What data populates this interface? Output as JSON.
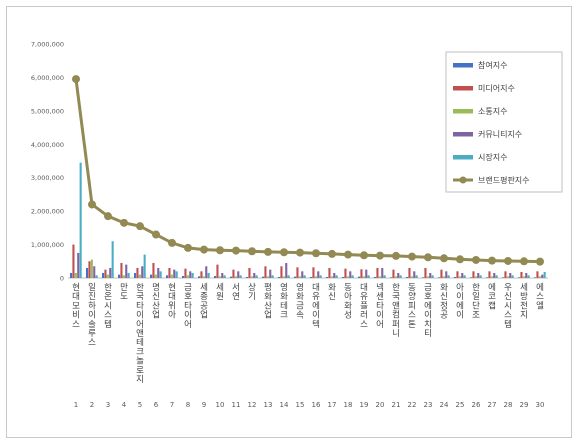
{
  "chart_data": {
    "type": "bar",
    "x": [
      1,
      2,
      3,
      4,
      5,
      6,
      7,
      8,
      9,
      10,
      11,
      12,
      13,
      14,
      15,
      16,
      17,
      18,
      19,
      20,
      21,
      22,
      23,
      24,
      25,
      26,
      27,
      28,
      29,
      30
    ],
    "categories": [
      "현대모비스",
      "일진하이솔루스",
      "한온시스템",
      "만도",
      "한국타이어앤테크놀로지",
      "명신산업",
      "현대위아",
      "금호타이어",
      "세종공업",
      "세원",
      "서연",
      "상기",
      "평화산업",
      "영화테크",
      "영화금속",
      "대유에이텍",
      "화신",
      "동아화성",
      "대유플러스",
      "넥센타이어",
      "한국앤컴퍼니",
      "동양피스톤",
      "금호에이치티",
      "화신정공",
      "아이에이",
      "한일단조",
      "에코캡",
      "우신시스템",
      "세방전지",
      "에스엘"
    ],
    "ylim": [
      0,
      7000000
    ],
    "yticks": [
      "0",
      "1,000,000",
      "2,000,000",
      "3,000,000",
      "4,000,000",
      "5,000,000",
      "6,000,000",
      "7,000,000"
    ],
    "series": [
      {
        "name": "참여지수",
        "color": "#4472c4",
        "values": [
          150000,
          300000,
          150000,
          100000,
          150000,
          100000,
          80000,
          60000,
          50000,
          60000,
          40000,
          30000,
          40000,
          30000,
          40000,
          30000,
          30000,
          30000,
          40000,
          30000,
          20000,
          30000,
          20000,
          20000,
          30000,
          20000,
          20000,
          20000,
          20000,
          20000
        ]
      },
      {
        "name": "미디어지수",
        "color": "#c0504d",
        "values": [
          1000000,
          500000,
          250000,
          450000,
          300000,
          450000,
          300000,
          280000,
          200000,
          400000,
          250000,
          300000,
          350000,
          350000,
          320000,
          320000,
          300000,
          280000,
          260000,
          300000,
          250000,
          300000,
          300000,
          250000,
          200000,
          200000,
          200000,
          200000,
          180000,
          200000
        ]
      },
      {
        "name": "소통지수",
        "color": "#9bbb59",
        "values": [
          150000,
          550000,
          100000,
          80000,
          100000,
          100000,
          100000,
          80000,
          50000,
          50000,
          50000,
          50000,
          50000,
          50000,
          50000,
          50000,
          50000,
          50000,
          50000,
          50000,
          50000,
          50000,
          50000,
          50000,
          50000,
          50000,
          50000,
          50000,
          50000,
          50000
        ]
      },
      {
        "name": "커뮤니티지수",
        "color": "#8064a2",
        "values": [
          750000,
          350000,
          300000,
          400000,
          350000,
          300000,
          250000,
          200000,
          350000,
          150000,
          200000,
          150000,
          250000,
          450000,
          200000,
          200000,
          150000,
          200000,
          250000,
          300000,
          150000,
          200000,
          150000,
          200000,
          150000,
          150000,
          150000,
          150000,
          150000,
          100000
        ]
      },
      {
        "name": "시장지수",
        "color": "#4bacc6",
        "values": [
          3450000,
          80000,
          1100000,
          150000,
          700000,
          200000,
          200000,
          150000,
          150000,
          80000,
          80000,
          80000,
          80000,
          80000,
          80000,
          80000,
          80000,
          80000,
          80000,
          80000,
          80000,
          80000,
          80000,
          80000,
          80000,
          80000,
          80000,
          80000,
          80000,
          180000
        ]
      },
      {
        "name": "브랜드평판지수",
        "color": "#938953",
        "type": "line",
        "values": [
          5950000,
          2200000,
          1850000,
          1650000,
          1550000,
          1300000,
          1050000,
          900000,
          850000,
          830000,
          820000,
          800000,
          780000,
          770000,
          760000,
          740000,
          720000,
          700000,
          680000,
          670000,
          660000,
          640000,
          620000,
          590000,
          560000,
          540000,
          520000,
          510000,
          500000,
          490000
        ]
      }
    ]
  }
}
